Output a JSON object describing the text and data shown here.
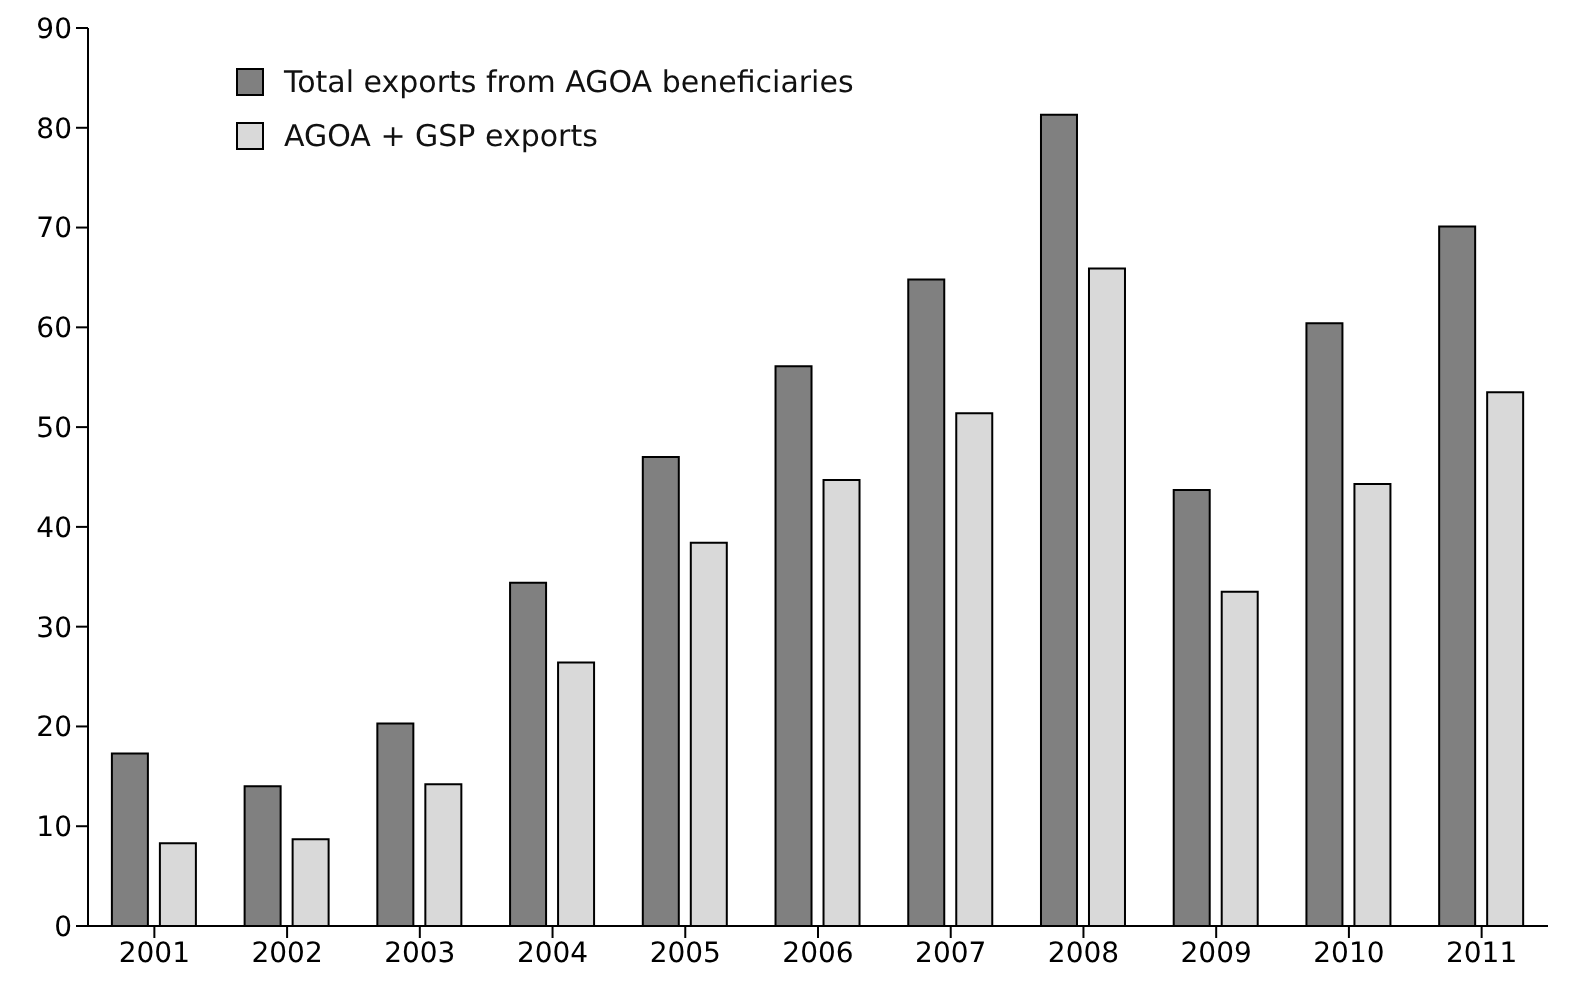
{
  "chart_data": {
    "type": "bar",
    "categories": [
      "2001",
      "2002",
      "2003",
      "2004",
      "2005",
      "2006",
      "2007",
      "2008",
      "2009",
      "2010",
      "2011"
    ],
    "series": [
      {
        "name": "Total exports from AGOA beneficiaries",
        "color": "#808080",
        "values": [
          17.3,
          14,
          20.3,
          34.4,
          47,
          56.1,
          64.8,
          81.3,
          43.7,
          60.4,
          70.1
        ]
      },
      {
        "name": "AGOA + GSP exports",
        "color": "#d9d9d9",
        "values": [
          8.3,
          8.7,
          14.2,
          26.4,
          38.4,
          44.7,
          51.4,
          65.9,
          33.5,
          44.3,
          53.5
        ]
      }
    ],
    "ylim": [
      0,
      90
    ],
    "yticks": [
      0,
      10,
      20,
      30,
      40,
      50,
      60,
      70,
      80,
      90
    ],
    "grid": false,
    "legend": "top left"
  }
}
